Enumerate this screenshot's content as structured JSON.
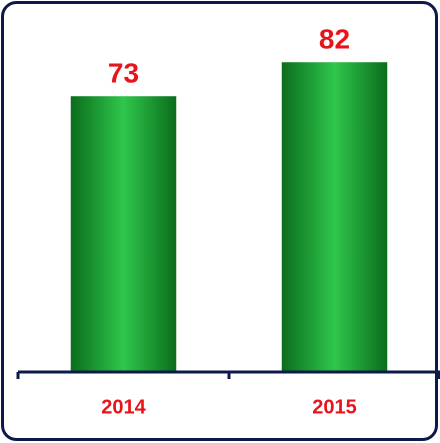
{
  "chart_data": {
    "type": "bar",
    "categories": [
      "2014",
      "2015"
    ],
    "values": [
      73,
      82
    ],
    "color": "#1faa38",
    "label_color": "#e8141c",
    "ylim": [
      0,
      90
    ]
  }
}
